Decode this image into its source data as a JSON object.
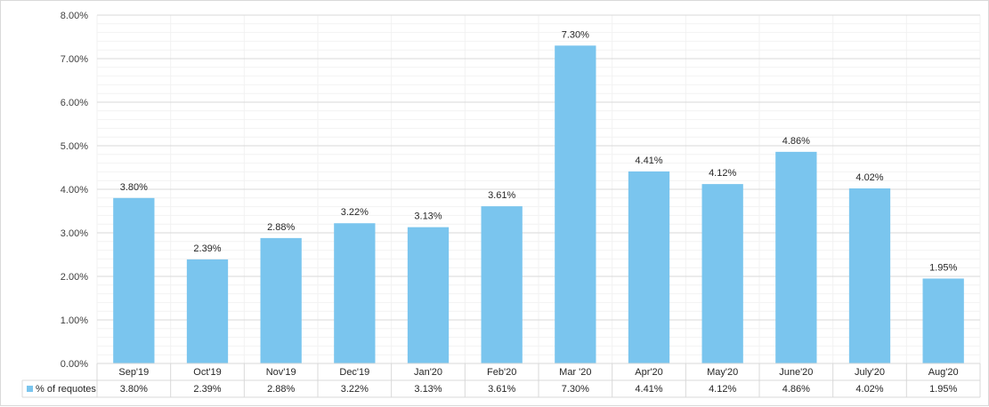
{
  "chart_data": {
    "type": "bar",
    "title": "",
    "xlabel": "",
    "ylabel": "",
    "ylim": [
      0,
      0.08
    ],
    "y_tick_step": 0.01,
    "y_tick_labels": [
      "0.00%",
      "1.00%",
      "2.00%",
      "3.00%",
      "4.00%",
      "5.00%",
      "6.00%",
      "7.00%",
      "8.00%"
    ],
    "grid": true,
    "legend_placement": "data-table",
    "bar_color": "#7ac5ee",
    "categories": [
      "Sep'19",
      "Oct'19",
      "Nov'19",
      "Dec'19",
      "Jan'20",
      "Feb'20",
      "Mar '20",
      "Apr'20",
      "May'20",
      "June'20",
      "July'20",
      "Aug'20"
    ],
    "series": [
      {
        "name": "% of requotes",
        "values": [
          0.038,
          0.0239,
          0.0288,
          0.0322,
          0.0313,
          0.0361,
          0.073,
          0.0441,
          0.0412,
          0.0486,
          0.0402,
          0.0195
        ],
        "labels": [
          "3.80%",
          "2.39%",
          "2.88%",
          "3.22%",
          "3.13%",
          "3.61%",
          "7.30%",
          "4.41%",
          "4.12%",
          "4.86%",
          "4.02%",
          "1.95%"
        ]
      }
    ]
  }
}
